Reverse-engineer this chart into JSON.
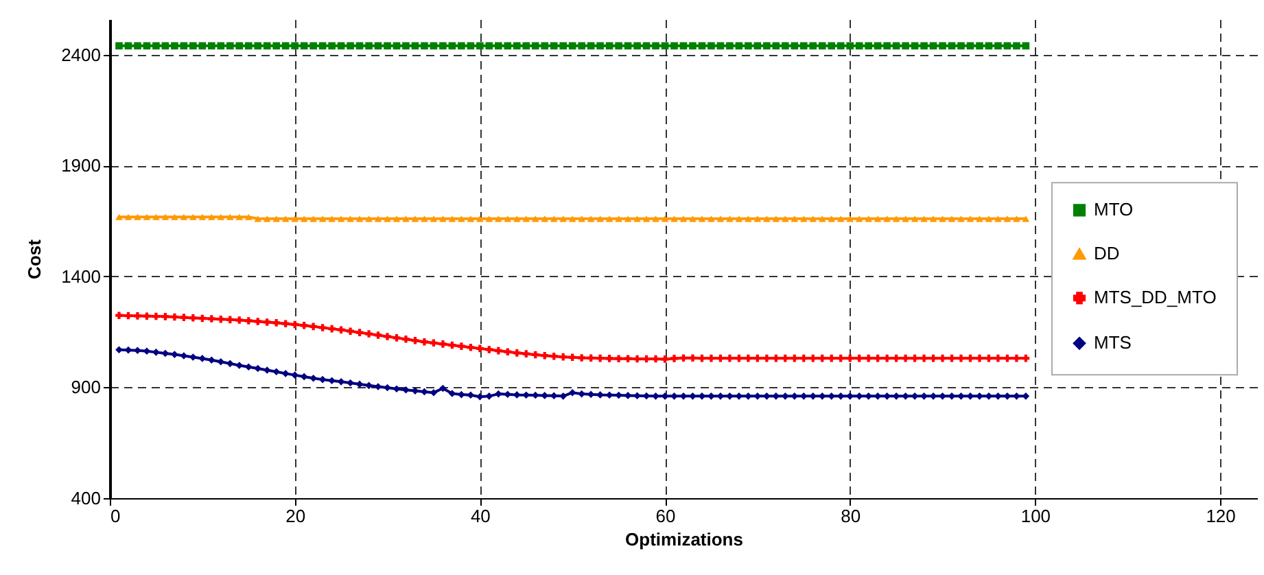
{
  "chart_data": {
    "type": "line",
    "xlabel": "Optimizations",
    "ylabel": "Cost",
    "x": [
      1,
      2,
      3,
      4,
      5,
      6,
      7,
      8,
      9,
      10,
      11,
      12,
      13,
      14,
      15,
      16,
      17,
      18,
      19,
      20,
      21,
      22,
      23,
      24,
      25,
      26,
      27,
      28,
      29,
      30,
      31,
      32,
      33,
      34,
      35,
      36,
      37,
      38,
      39,
      40,
      41,
      42,
      43,
      44,
      45,
      46,
      47,
      48,
      49,
      50,
      51,
      52,
      53,
      54,
      55,
      56,
      57,
      58,
      59,
      60,
      61,
      62,
      63,
      64,
      65,
      66,
      67,
      68,
      69,
      70,
      71,
      72,
      73,
      74,
      75,
      76,
      77,
      78,
      79,
      80,
      81,
      82,
      83,
      84,
      85,
      86,
      87,
      88,
      89,
      90,
      91,
      92,
      93,
      94,
      95,
      96,
      97,
      98,
      99
    ],
    "series": [
      {
        "name": "MTO",
        "color": "#008000",
        "marker": "square",
        "values": [
          2440,
          2440,
          2440,
          2440,
          2440,
          2440,
          2440,
          2440,
          2440,
          2440,
          2440,
          2440,
          2440,
          2440,
          2440,
          2440,
          2440,
          2440,
          2440,
          2440,
          2440,
          2440,
          2440,
          2440,
          2440,
          2440,
          2440,
          2440,
          2440,
          2440,
          2440,
          2440,
          2440,
          2440,
          2440,
          2440,
          2440,
          2440,
          2440,
          2440,
          2440,
          2440,
          2440,
          2440,
          2440,
          2440,
          2440,
          2440,
          2440,
          2440,
          2440,
          2440,
          2440,
          2440,
          2440,
          2440,
          2440,
          2440,
          2440,
          2440,
          2440,
          2440,
          2440,
          2440,
          2440,
          2440,
          2440,
          2440,
          2440,
          2440,
          2440,
          2440,
          2440,
          2440,
          2440,
          2440,
          2440,
          2440,
          2440,
          2440,
          2440,
          2440,
          2440,
          2440,
          2440,
          2440,
          2440,
          2440,
          2440,
          2440,
          2440,
          2440,
          2440,
          2440,
          2440,
          2440,
          2440,
          2440,
          2440
        ]
      },
      {
        "name": "DD",
        "color": "#ff9900",
        "marker": "triangle",
        "values": [
          1668,
          1668,
          1668,
          1668,
          1668,
          1668,
          1668,
          1668,
          1668,
          1668,
          1668,
          1668,
          1668,
          1668,
          1668,
          1660,
          1660,
          1660,
          1660,
          1660,
          1660,
          1660,
          1660,
          1660,
          1660,
          1660,
          1660,
          1660,
          1660,
          1660,
          1660,
          1660,
          1660,
          1660,
          1660,
          1660,
          1660,
          1660,
          1660,
          1660,
          1660,
          1660,
          1660,
          1660,
          1660,
          1660,
          1660,
          1660,
          1660,
          1660,
          1660,
          1660,
          1660,
          1660,
          1660,
          1660,
          1660,
          1660,
          1660,
          1660,
          1660,
          1660,
          1660,
          1660,
          1660,
          1660,
          1660,
          1660,
          1660,
          1660,
          1660,
          1660,
          1660,
          1660,
          1660,
          1660,
          1660,
          1660,
          1660,
          1660,
          1660,
          1660,
          1660,
          1660,
          1660,
          1660,
          1660,
          1660,
          1660,
          1660,
          1660,
          1660,
          1660,
          1660,
          1660,
          1660,
          1660,
          1660,
          1660
        ]
      },
      {
        "name": "MTS_DD_MTO",
        "color": "#ff0000",
        "marker": "cross",
        "values": [
          1224,
          1223,
          1222,
          1221,
          1220,
          1219,
          1217,
          1215,
          1213,
          1211,
          1209,
          1207,
          1205,
          1203,
          1200,
          1197,
          1194,
          1191,
          1187,
          1183,
          1179,
          1174,
          1169,
          1164,
          1159,
          1153,
          1147,
          1141,
          1135,
          1129,
          1123,
          1117,
          1111,
          1105,
          1100,
          1095,
          1090,
          1085,
          1080,
          1075,
          1070,
          1065,
          1060,
          1055,
          1051,
          1047,
          1043,
          1040,
          1037,
          1035,
          1033,
          1032,
          1031,
          1030,
          1029,
          1029,
          1028,
          1028,
          1028,
          1027,
          1030,
          1032,
          1032,
          1031,
          1031,
          1031,
          1031,
          1031,
          1031,
          1031,
          1031,
          1031,
          1031,
          1031,
          1031,
          1031,
          1031,
          1031,
          1031,
          1031,
          1031,
          1031,
          1031,
          1031,
          1031,
          1031,
          1031,
          1031,
          1031,
          1031,
          1031,
          1031,
          1031,
          1031,
          1031,
          1031,
          1031,
          1031,
          1031
        ]
      },
      {
        "name": "MTS",
        "color": "#000080",
        "marker": "diamond",
        "values": [
          1069,
          1068,
          1066,
          1063,
          1058,
          1053,
          1048,
          1042,
          1036,
          1030,
          1023,
          1015,
          1007,
          999,
          992,
          985,
          977,
          970,
          962,
          955,
          948,
          941,
          935,
          930,
          925,
          920,
          914,
          908,
          903,
          898,
          893,
          888,
          884,
          880,
          876,
          895,
          872,
          867,
          865,
          857,
          860,
          870,
          868,
          866,
          865,
          864,
          863,
          862,
          860,
          876,
          870,
          868,
          866,
          865,
          864,
          863,
          862,
          861,
          860,
          860,
          860,
          860,
          860,
          860,
          860,
          860,
          860,
          860,
          860,
          860,
          860,
          860,
          860,
          860,
          860,
          860,
          860,
          860,
          860,
          860,
          860,
          860,
          860,
          860,
          860,
          860,
          860,
          860,
          860,
          860,
          860,
          860,
          860,
          860,
          860,
          860,
          860,
          860,
          860
        ]
      }
    ],
    "xlim": [
      0,
      124
    ],
    "ylim": [
      400,
      2560
    ],
    "xticks": [
      0,
      20,
      40,
      60,
      80,
      100,
      120
    ],
    "yticks": [
      400,
      900,
      1400,
      1900,
      2400
    ],
    "grid": true,
    "legend": "right",
    "line_style": "solid"
  }
}
